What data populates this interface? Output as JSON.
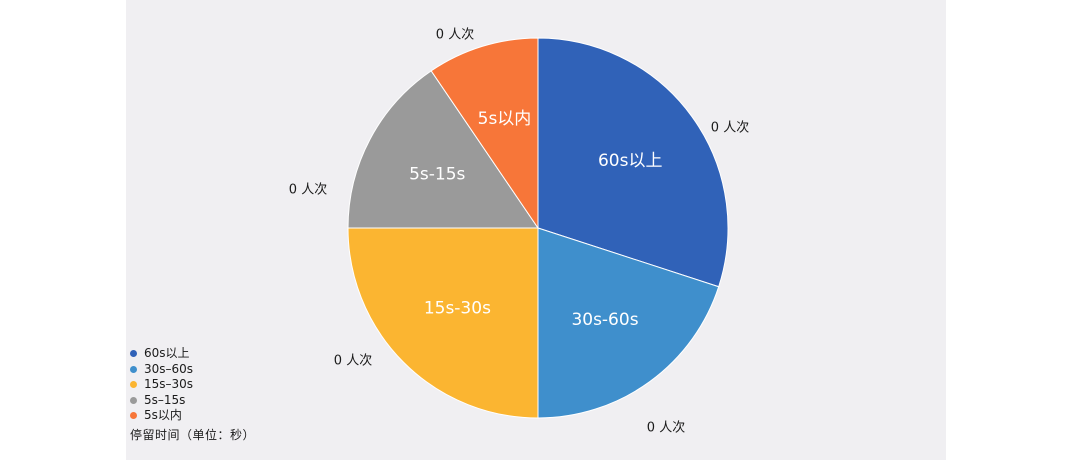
{
  "chart_data": {
    "type": "pie",
    "slices": [
      {
        "label": "60s以上",
        "count_label": "0 人次",
        "share": 0.3,
        "color": "#3062b8"
      },
      {
        "label": "30s-60s",
        "count_label": "0 人次",
        "share": 0.2,
        "color": "#3f8fcc"
      },
      {
        "label": "15s-30s",
        "count_label": "0 人次",
        "share": 0.25,
        "color": "#fbb531"
      },
      {
        "label": "5s-15s",
        "count_label": "0 人次",
        "share": 0.155,
        "color": "#9a9a9a"
      },
      {
        "label": "5s以内",
        "count_label": "0 人次",
        "share": 0.095,
        "color": "#f77639"
      }
    ],
    "legend": {
      "position": "bottom-left",
      "items": [
        "60s以上",
        "30s–60s",
        "15s–30s",
        "5s–15s",
        "5s以内"
      ],
      "title": "停留时间（单位：秒）"
    }
  }
}
